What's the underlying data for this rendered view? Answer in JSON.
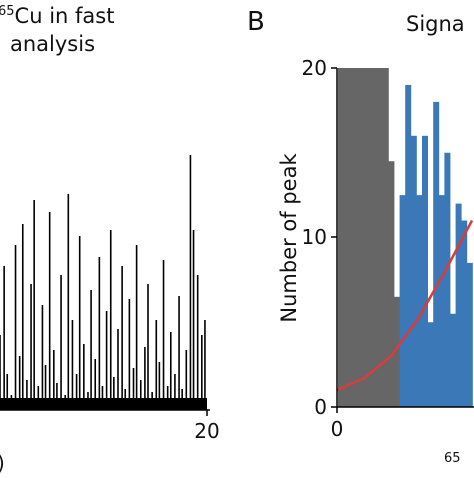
{
  "panel_a": {
    "title_line1_sup": "65",
    "title_line1_rest": "Cu in fast",
    "title_line2": "analysis",
    "x_tick_last": "20",
    "x_axis_fragment": ")",
    "color": "#000000"
  },
  "panel_b": {
    "letter": "B",
    "title_fragment": "Signa",
    "ylabel": "Number of peak",
    "x_tick_0": "0",
    "xlabel_fragment_sup": "65",
    "y_ticks": [
      "20",
      "10",
      "0"
    ],
    "gray_color": "#666666",
    "blue_color": "#3a78b8",
    "fit_color": "#d83c3c"
  },
  "chart_data": [
    {
      "type": "line",
      "title": "65Cu in fast analysis",
      "note": "dense spike trace, cropped at left edge",
      "xlim": [
        0,
        20
      ],
      "x": [
        0.0,
        0.4,
        0.7,
        1.1,
        1.5,
        1.9,
        2.2,
        2.6,
        3.0,
        3.3,
        3.7,
        4.1,
        4.4,
        4.8,
        5.2,
        5.5,
        5.9,
        6.3,
        6.6,
        7.0,
        7.4,
        7.7,
        8.1,
        8.5,
        8.8,
        9.2,
        9.6,
        9.9,
        10.3,
        10.7,
        11.0,
        11.4,
        11.8,
        12.1,
        12.5,
        12.9,
        13.2,
        13.6,
        14.0,
        14.3,
        14.7,
        15.1,
        15.4,
        15.8,
        16.2,
        16.5,
        16.9,
        17.3,
        17.6,
        18.0,
        18.4,
        18.7,
        19.1,
        19.5,
        19.8
      ],
      "values": [
        0.25,
        0.48,
        0.12,
        0.05,
        0.55,
        0.18,
        0.62,
        0.1,
        0.42,
        0.7,
        0.08,
        0.35,
        0.15,
        0.66,
        0.2,
        0.09,
        0.45,
        0.05,
        0.72,
        0.3,
        0.12,
        0.58,
        0.22,
        0.06,
        0.4,
        0.17,
        0.51,
        0.08,
        0.33,
        0.6,
        0.11,
        0.27,
        0.48,
        0.07,
        0.37,
        0.14,
        0.55,
        0.1,
        0.21,
        0.42,
        0.06,
        0.3,
        0.16,
        0.5,
        0.08,
        0.26,
        0.12,
        0.38,
        0.07,
        0.2,
        0.85,
        0.6,
        0.45,
        0.25,
        0.3
      ]
    },
    {
      "type": "bar",
      "title": "Signa",
      "ylabel": "Number of peak",
      "ylim": [
        0,
        20
      ],
      "y_ticks": [
        0,
        10,
        20
      ],
      "series": [
        {
          "values": [
            20,
            20,
            20,
            20,
            20,
            20,
            20,
            20,
            20,
            14.5,
            6.5
          ],
          "color": "#666666"
        },
        {
          "values": [
            12.5,
            19,
            16,
            12.5,
            16,
            5,
            18,
            12.5,
            15,
            5.5,
            12,
            11,
            8.5
          ],
          "color": "#3a78b8"
        }
      ],
      "fit": {
        "x": [
          0,
          0.2,
          0.4,
          0.6,
          0.8,
          1.0
        ],
        "y": [
          1.0,
          1.7,
          3.0,
          5.2,
          8.0,
          11.0
        ],
        "color": "#d83c3c"
      }
    }
  ]
}
